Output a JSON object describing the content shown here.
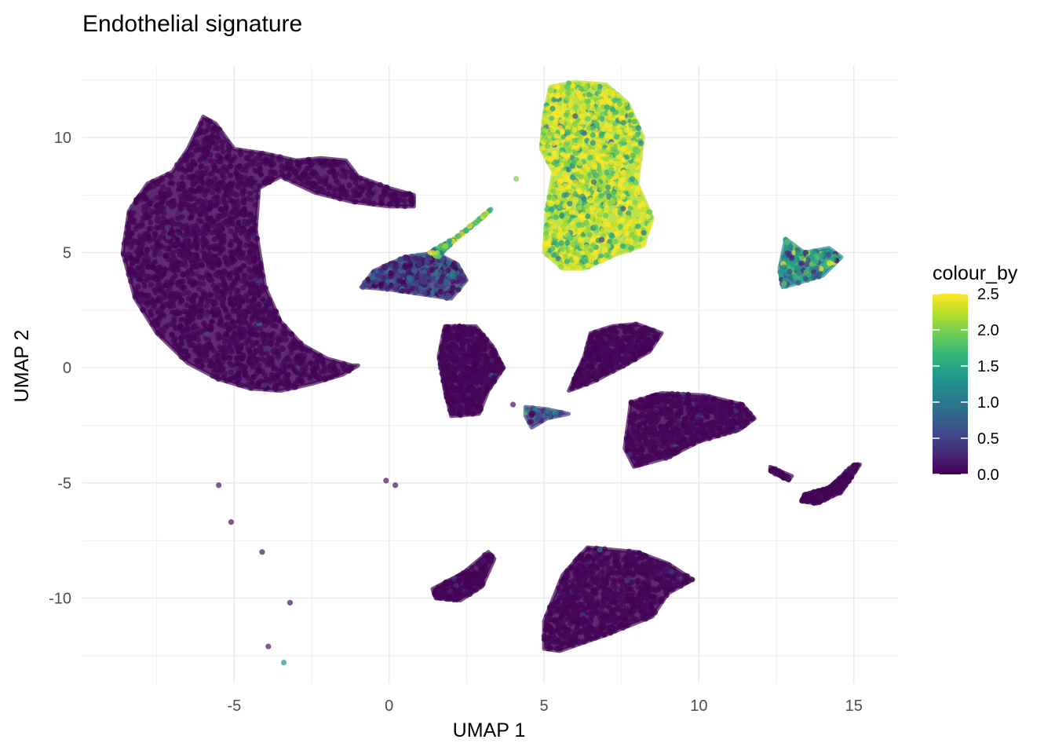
{
  "chart_data": {
    "type": "scatter",
    "title": "Endothelial signature",
    "xlabel": "UMAP 1",
    "ylabel": "UMAP 2",
    "xlim": [
      -9.9,
      16.4
    ],
    "ylim": [
      -13.7,
      13.1
    ],
    "x_ticks": [
      -5,
      0,
      5,
      10,
      15
    ],
    "y_ticks": [
      -10,
      -5,
      0,
      5,
      10
    ],
    "x_tick_labels": [
      "-5",
      "0",
      "5",
      "10",
      "15"
    ],
    "y_tick_labels": [
      "-10",
      "-5",
      "0",
      "5",
      "10"
    ],
    "grid": true,
    "color_scale": {
      "name": "viridis",
      "title": "colour_by",
      "min": 0.0,
      "max": 2.5,
      "breaks": [
        0.0,
        0.5,
        1.0,
        1.5,
        2.0,
        2.5
      ],
      "break_labels": [
        "0.0",
        "0.5",
        "1.0",
        "1.5",
        "2.0",
        "2.5"
      ],
      "placement": "right"
    },
    "point_opacity": 0.7,
    "clusters": [
      {
        "id": "c1",
        "polygon": [
          [
            -6.0,
            10.9
          ],
          [
            -5.6,
            10.6
          ],
          [
            -5.0,
            9.5
          ],
          [
            -4.0,
            9.3
          ],
          [
            -3.0,
            9.0
          ],
          [
            -2.2,
            9.1
          ],
          [
            -1.4,
            9.0
          ],
          [
            -1.0,
            8.3
          ],
          [
            0.0,
            7.8
          ],
          [
            0.8,
            7.5
          ],
          [
            0.8,
            7.0
          ],
          [
            0.0,
            7.0
          ],
          [
            -1.2,
            7.2
          ],
          [
            -2.4,
            7.6
          ],
          [
            -3.5,
            8.3
          ],
          [
            -4.2,
            7.8
          ],
          [
            -4.3,
            6.0
          ],
          [
            -4.0,
            3.5
          ],
          [
            -3.5,
            2.0
          ],
          [
            -2.8,
            1.0
          ],
          [
            -2.0,
            0.4
          ],
          [
            -1.2,
            0.1
          ],
          [
            -1.0,
            0.1
          ],
          [
            -1.5,
            -0.3
          ],
          [
            -2.5,
            -0.7
          ],
          [
            -3.5,
            -1.0
          ],
          [
            -4.5,
            -0.9
          ],
          [
            -5.5,
            -0.5
          ],
          [
            -6.5,
            0.2
          ],
          [
            -7.5,
            1.5
          ],
          [
            -8.2,
            3.0
          ],
          [
            -8.6,
            5.0
          ],
          [
            -8.4,
            6.8
          ],
          [
            -7.8,
            8.0
          ],
          [
            -7.0,
            8.5
          ],
          [
            -6.5,
            9.5
          ]
        ],
        "count": 2400,
        "value_mean": 0.03,
        "value_spread": 0.12
      },
      {
        "id": "c2",
        "polygon": [
          [
            -0.9,
            3.5
          ],
          [
            -0.5,
            4.2
          ],
          [
            0.5,
            4.8
          ],
          [
            1.5,
            5.0
          ],
          [
            2.2,
            4.5
          ],
          [
            2.5,
            3.8
          ],
          [
            2.0,
            3.0
          ],
          [
            1.0,
            3.2
          ],
          [
            0.0,
            3.4
          ]
        ],
        "count": 420,
        "value_mean": 0.4,
        "value_spread": 0.35
      },
      {
        "id": "c3",
        "polygon": [
          [
            1.3,
            5.0
          ],
          [
            2.2,
            5.7
          ],
          [
            3.3,
            6.9
          ],
          [
            3.0,
            6.5
          ],
          [
            2.0,
            5.4
          ],
          [
            1.6,
            4.8
          ]
        ],
        "count": 140,
        "value_mean": 1.8,
        "value_spread": 0.6
      },
      {
        "id": "c4",
        "polygon": [
          [
            5.0,
            5.0
          ],
          [
            5.1,
            7.0
          ],
          [
            5.3,
            8.5
          ],
          [
            4.9,
            9.5
          ],
          [
            5.0,
            11.0
          ],
          [
            5.2,
            12.2
          ],
          [
            6.0,
            12.4
          ],
          [
            7.0,
            12.3
          ],
          [
            7.7,
            11.5
          ],
          [
            8.2,
            10.0
          ],
          [
            8.0,
            8.0
          ],
          [
            8.5,
            6.5
          ],
          [
            8.2,
            5.3
          ],
          [
            7.3,
            4.9
          ],
          [
            6.3,
            4.3
          ],
          [
            5.6,
            4.3
          ]
        ],
        "count": 1400,
        "value_mean": 2.2,
        "value_spread": 0.55
      },
      {
        "id": "c5",
        "polygon": [
          [
            1.8,
            1.8
          ],
          [
            2.8,
            1.8
          ],
          [
            3.3,
            1.0
          ],
          [
            3.7,
            0.0
          ],
          [
            3.2,
            -1.0
          ],
          [
            2.9,
            -2.0
          ],
          [
            2.0,
            -2.1
          ],
          [
            1.8,
            -1.0
          ],
          [
            1.6,
            0.5
          ]
        ],
        "count": 600,
        "value_mean": 0.03,
        "value_spread": 0.1
      },
      {
        "id": "c6",
        "polygon": [
          [
            5.8,
            -1.0
          ],
          [
            6.6,
            -0.6
          ],
          [
            7.6,
            0.1
          ],
          [
            8.4,
            0.7
          ],
          [
            8.8,
            1.5
          ],
          [
            8.0,
            1.9
          ],
          [
            7.2,
            1.8
          ],
          [
            6.5,
            1.5
          ],
          [
            6.3,
            0.5
          ]
        ],
        "count": 420,
        "value_mean": 0.03,
        "value_spread": 0.1
      },
      {
        "id": "c7",
        "polygon": [
          [
            7.8,
            -1.5
          ],
          [
            8.8,
            -1.1
          ],
          [
            10.2,
            -1.2
          ],
          [
            11.4,
            -1.6
          ],
          [
            11.8,
            -2.2
          ],
          [
            11.3,
            -2.7
          ],
          [
            10.0,
            -3.2
          ],
          [
            9.0,
            -3.9
          ],
          [
            7.9,
            -4.3
          ],
          [
            7.6,
            -3.5
          ]
        ],
        "count": 700,
        "value_mean": 0.03,
        "value_spread": 0.1
      },
      {
        "id": "c8",
        "polygon": [
          [
            12.8,
            5.6
          ],
          [
            13.4,
            5.0
          ],
          [
            14.2,
            5.2
          ],
          [
            14.6,
            4.8
          ],
          [
            14.0,
            4.0
          ],
          [
            13.0,
            3.6
          ],
          [
            12.7,
            3.5
          ],
          [
            12.6,
            4.3
          ]
        ],
        "count": 180,
        "value_mean": 1.2,
        "value_spread": 0.6
      },
      {
        "id": "c9",
        "polygon": [
          [
            13.4,
            -5.5
          ],
          [
            14.2,
            -5.2
          ],
          [
            15.0,
            -4.2
          ],
          [
            15.2,
            -4.2
          ],
          [
            14.6,
            -5.4
          ],
          [
            13.8,
            -5.9
          ],
          [
            13.3,
            -5.8
          ]
        ],
        "count": 200,
        "value_mean": 0.03,
        "value_spread": 0.1
      },
      {
        "id": "c10",
        "polygon": [
          [
            12.3,
            -4.3
          ],
          [
            13.0,
            -4.7
          ],
          [
            12.9,
            -4.9
          ],
          [
            12.3,
            -4.5
          ]
        ],
        "count": 30,
        "value_mean": 0.03,
        "value_spread": 0.1
      },
      {
        "id": "c11",
        "polygon": [
          [
            1.4,
            -9.6
          ],
          [
            2.4,
            -8.9
          ],
          [
            3.2,
            -8.0
          ],
          [
            3.4,
            -8.3
          ],
          [
            3.0,
            -9.5
          ],
          [
            2.3,
            -10.1
          ],
          [
            1.5,
            -10.0
          ]
        ],
        "count": 180,
        "value_mean": 0.03,
        "value_spread": 0.1
      },
      {
        "id": "c12",
        "polygon": [
          [
            6.4,
            -7.8
          ],
          [
            8.0,
            -8.0
          ],
          [
            9.0,
            -8.5
          ],
          [
            9.8,
            -9.2
          ],
          [
            9.0,
            -9.8
          ],
          [
            8.5,
            -10.8
          ],
          [
            7.0,
            -11.6
          ],
          [
            5.5,
            -12.3
          ],
          [
            5.0,
            -12.2
          ],
          [
            5.0,
            -11.0
          ],
          [
            5.6,
            -9.0
          ]
        ],
        "count": 900,
        "value_mean": 0.03,
        "value_spread": 0.1
      },
      {
        "id": "c13",
        "polygon": [
          [
            4.4,
            -1.7
          ],
          [
            5.1,
            -1.8
          ],
          [
            5.8,
            -2.0
          ],
          [
            5.1,
            -2.2
          ],
          [
            4.6,
            -2.6
          ],
          [
            4.4,
            -2.1
          ]
        ],
        "count": 40,
        "value_mean": 0.5,
        "value_spread": 0.5
      }
    ],
    "outliers": [
      {
        "x": -5.5,
        "y": -5.1,
        "v": 0.1
      },
      {
        "x": -5.1,
        "y": -6.7,
        "v": 0.1
      },
      {
        "x": -4.1,
        "y": -8.0,
        "v": 0.1
      },
      {
        "x": -3.2,
        "y": -10.2,
        "v": 0.1
      },
      {
        "x": -3.9,
        "y": -12.1,
        "v": 0.1
      },
      {
        "x": -3.4,
        "y": -12.8,
        "v": 1.3
      },
      {
        "x": -0.1,
        "y": -4.9,
        "v": 0.1
      },
      {
        "x": 0.2,
        "y": -5.1,
        "v": 0.1
      },
      {
        "x": 4.1,
        "y": 8.2,
        "v": 2.0
      },
      {
        "x": 4.0,
        "y": -1.6,
        "v": 0.1
      },
      {
        "x": 6.8,
        "y": -7.9,
        "v": 1.0
      }
    ]
  }
}
